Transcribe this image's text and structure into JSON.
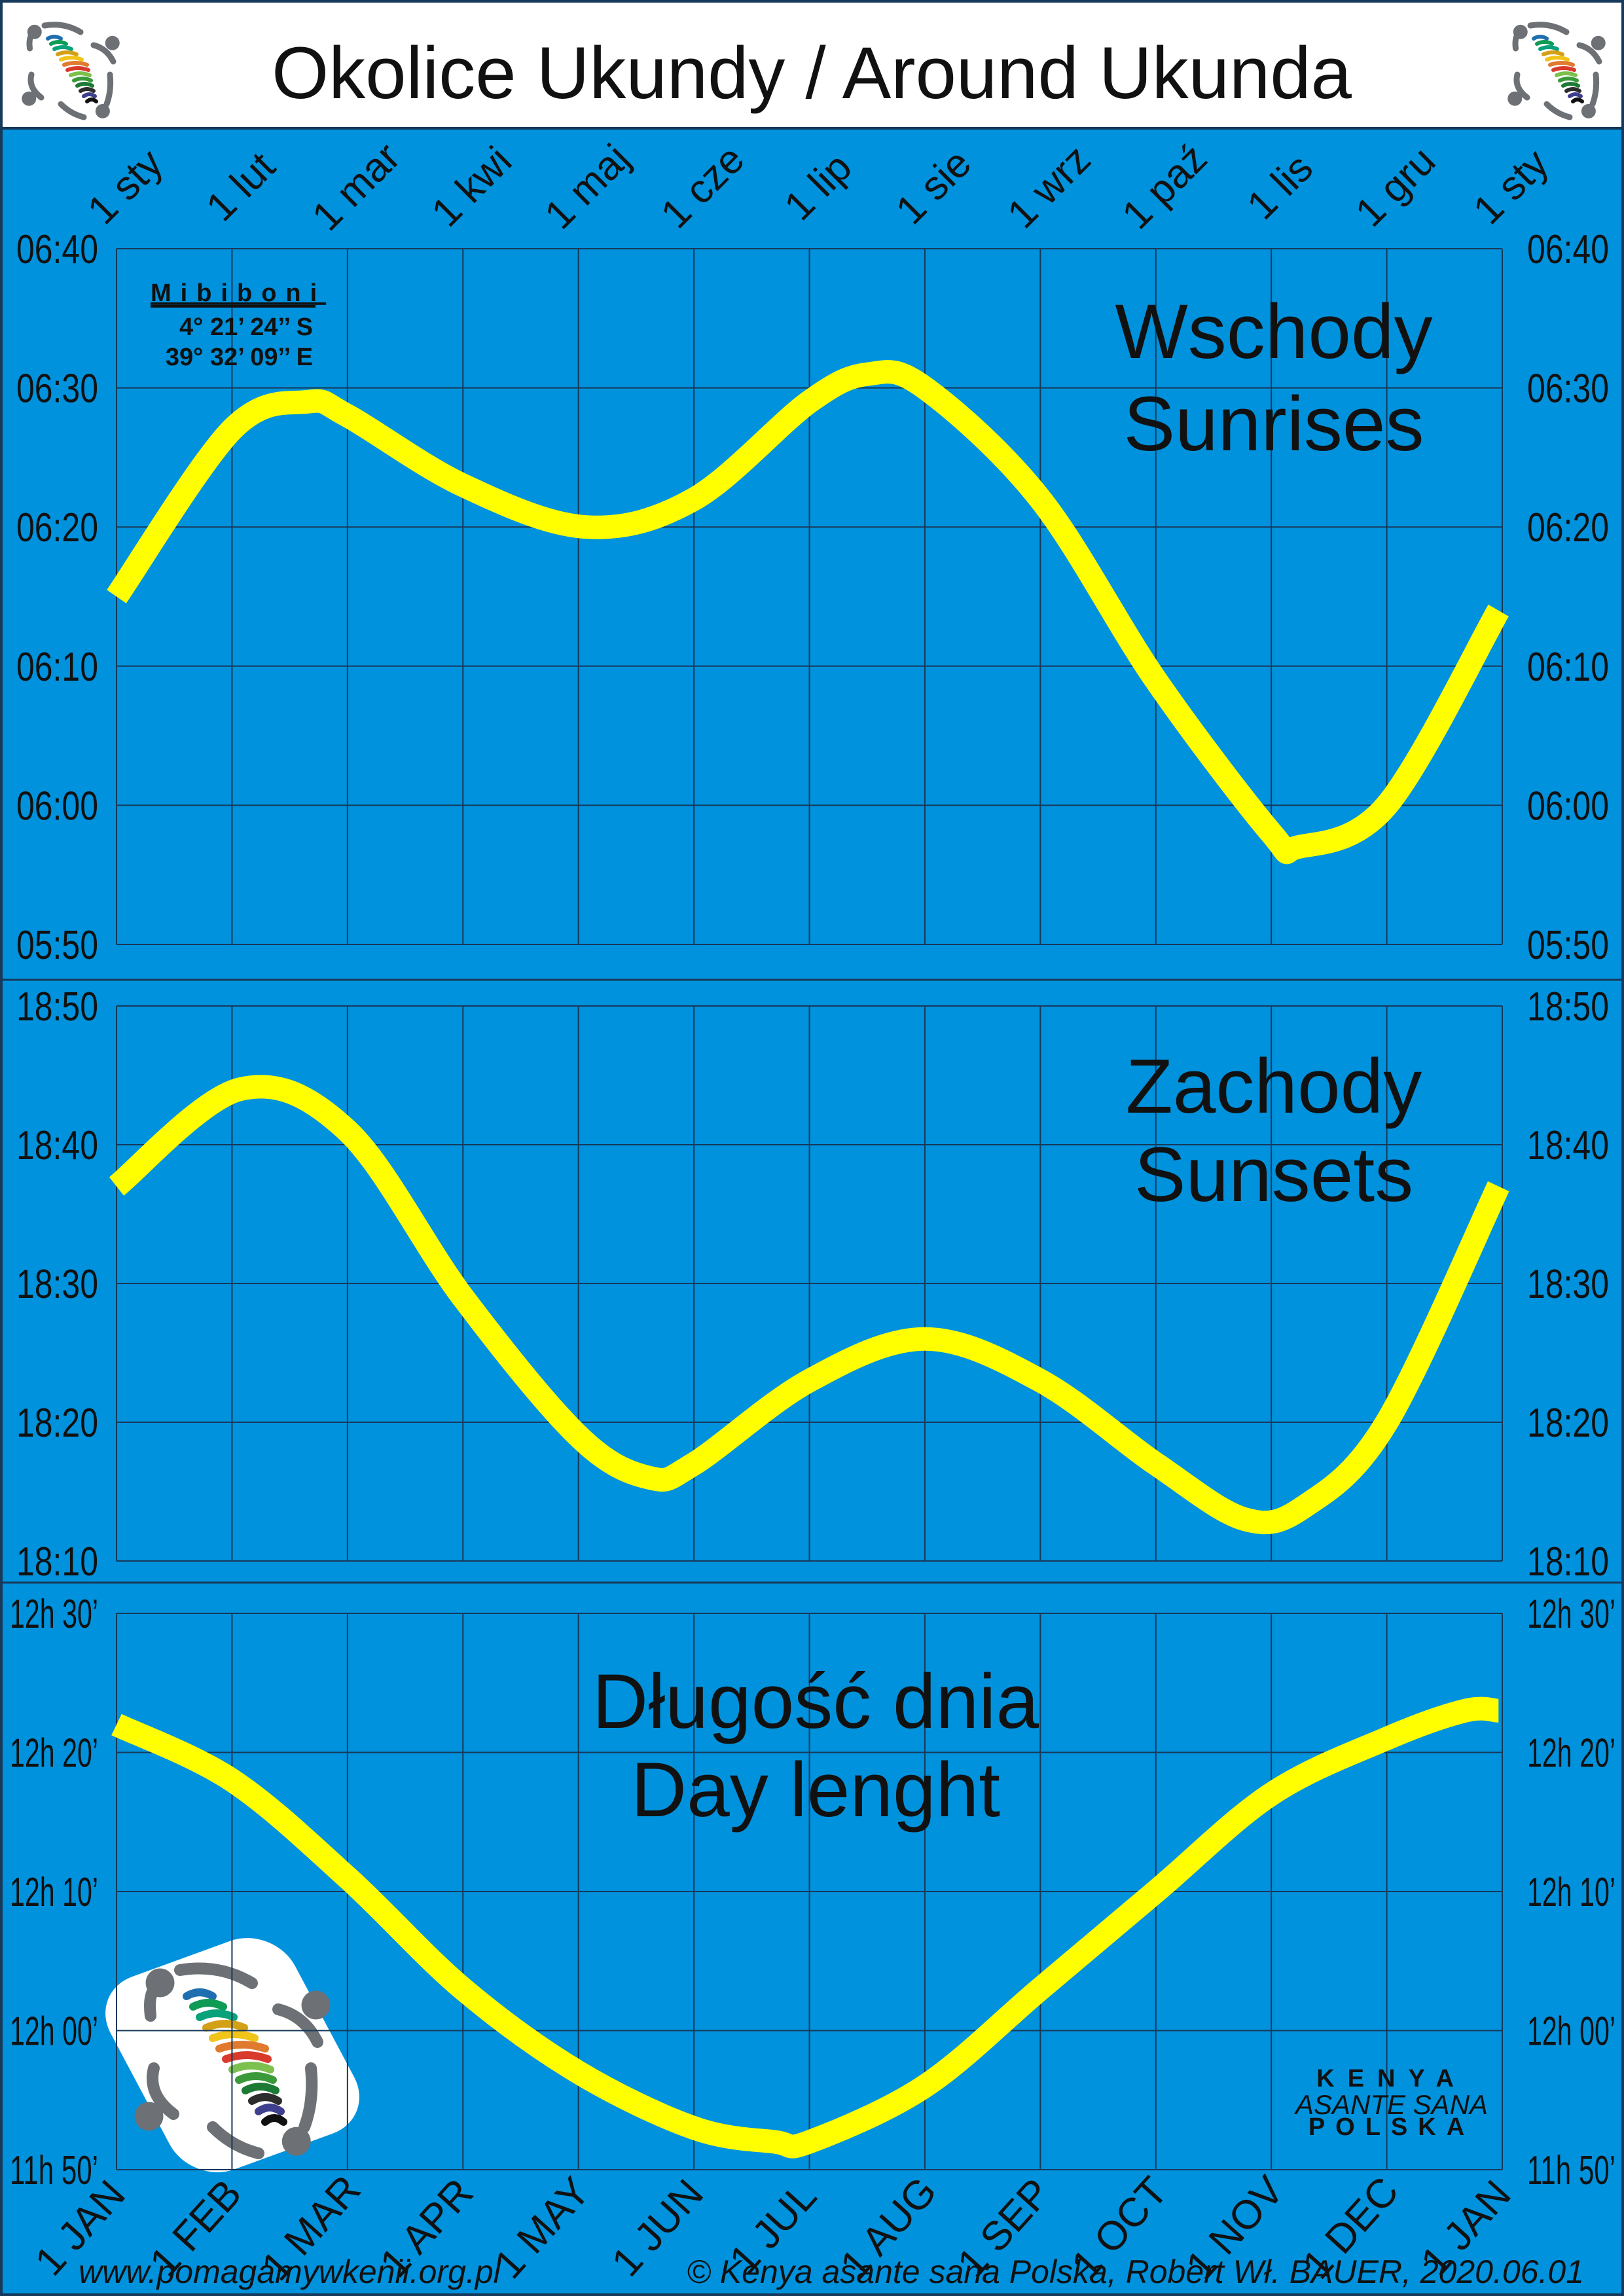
{
  "header": {
    "title": "Okolice Ukundy / Around Ukunda"
  },
  "location": {
    "name": "Mibiboni",
    "lat": "4° 21’ 24’’ S",
    "lon": "39° 32’ 09’’ E"
  },
  "top_month_labels": [
    "1 sty",
    "1 lut",
    "1 mar",
    "1 kwi",
    "1 maj",
    "1 cze",
    "1 lip",
    "1 sie",
    "1 wrz",
    "1 paź",
    "1 lis",
    "1 gru",
    "1 sty"
  ],
  "bottom_month_labels": [
    "1 JAN",
    "1 FEB",
    "1 MAR",
    "1 APR",
    "1 MAY",
    "1 JUN",
    "1 JUL",
    "1 AUG",
    "1 SEP",
    "1 OCT",
    "1 NOV",
    "1 DEC",
    "1 JAN"
  ],
  "footer": {
    "website": "www.pomagamywkenii.org.pl",
    "copyright": "© Kenya asante sana Polska, Robert Wł. BAUER, 2020.06.01"
  },
  "brand": {
    "line1": "KENYA",
    "line2": "ASANTE SANA",
    "line3": "POLSKA"
  },
  "colors": {
    "background": "#0092dd",
    "curve": "#ffff00",
    "grid": "#17395a",
    "text": "#111111"
  },
  "chart_data": [
    {
      "type": "line",
      "title": [
        "Wschody",
        "Sunrises"
      ],
      "yticks": [
        "06:40",
        "06:30",
        "06:20",
        "06:10",
        "06:00",
        "05:50"
      ],
      "ylim": [
        "05:50",
        "06:40"
      ],
      "grid": true,
      "points": [
        [
          "01-01",
          "06:15"
        ],
        [
          "02-01",
          "06:27"
        ],
        [
          "02-20",
          "06:29"
        ],
        [
          "03-01",
          "06:28"
        ],
        [
          "04-01",
          "06:23"
        ],
        [
          "05-03",
          "06:20"
        ],
        [
          "06-01",
          "06:22"
        ],
        [
          "07-01",
          "06:29"
        ],
        [
          "07-17",
          "06:31"
        ],
        [
          "08-01",
          "06:30"
        ],
        [
          "09-01",
          "06:22"
        ],
        [
          "10-01",
          "06:09"
        ],
        [
          "11-01",
          "05:58"
        ],
        [
          "11-08",
          "05:57"
        ],
        [
          "12-01",
          "06:00"
        ],
        [
          "12-31",
          "06:14"
        ]
      ]
    },
    {
      "type": "line",
      "title": [
        "Zachody",
        "Sunsets"
      ],
      "yticks": [
        "18:50",
        "18:40",
        "18:30",
        "18:20",
        "18:10"
      ],
      "ylim": [
        "18:10",
        "18:50"
      ],
      "grid": true,
      "points": [
        [
          "01-01",
          "18:37"
        ],
        [
          "02-03",
          "18:44"
        ],
        [
          "03-01",
          "18:41"
        ],
        [
          "04-01",
          "18:29"
        ],
        [
          "05-01",
          "18:19"
        ],
        [
          "05-20",
          "18:16"
        ],
        [
          "06-01",
          "18:17"
        ],
        [
          "07-01",
          "18:23"
        ],
        [
          "08-01",
          "18:26"
        ],
        [
          "09-01",
          "18:23"
        ],
        [
          "10-01",
          "18:17"
        ],
        [
          "10-25",
          "18:13"
        ],
        [
          "11-10",
          "18:14"
        ],
        [
          "12-01",
          "18:20"
        ],
        [
          "12-31",
          "18:37"
        ]
      ]
    },
    {
      "type": "line",
      "title": [
        "Długość dnia",
        "Day lenght"
      ],
      "yticks": [
        "12h 30’",
        "12h 20’",
        "12h 10’",
        "12h 00’",
        "11h 50’"
      ],
      "ylim": [
        "11h 50’",
        "12h 30’"
      ],
      "grid": true,
      "points": [
        [
          "01-01",
          "12h 22’"
        ],
        [
          "02-01",
          "12h 18’"
        ],
        [
          "03-01",
          "12h 11’"
        ],
        [
          "04-01",
          "12h 03’"
        ],
        [
          "05-01",
          "11h 57’"
        ],
        [
          "06-01",
          "11h 53’"
        ],
        [
          "06-22",
          "11h 52’"
        ],
        [
          "07-01",
          "11h 52’"
        ],
        [
          "08-01",
          "11h 56’"
        ],
        [
          "09-01",
          "12h 03’"
        ],
        [
          "10-01",
          "12h 10’"
        ],
        [
          "11-01",
          "12h 17’"
        ],
        [
          "12-01",
          "12h 21’"
        ],
        [
          "12-22",
          "12h 23’"
        ],
        [
          "12-31",
          "12h 23’"
        ]
      ]
    }
  ]
}
